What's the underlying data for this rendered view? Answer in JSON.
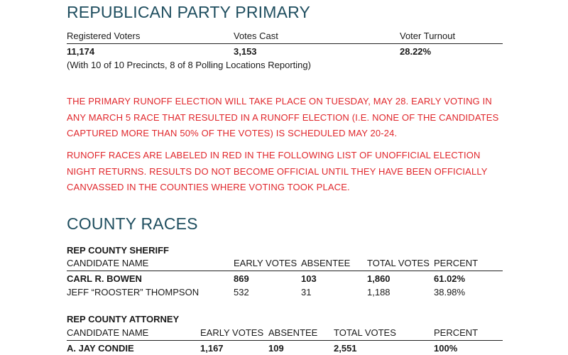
{
  "primary": {
    "title": "REPUBLICAN PARTY PRIMARY",
    "headers": [
      "Registered Voters",
      "Votes Cast",
      "Voter Turnout"
    ],
    "values": [
      "11,174",
      "3,153",
      "28.22%"
    ],
    "note": "(With 10 of 10 Precincts, 8 of 8 Polling Locations Reporting)"
  },
  "notices": [
    "THE PRIMARY RUNOFF ELECTION WILL TAKE PLACE ON TUESDAY, MAY 28. EARLY VOTING IN ANY MARCH 5 RACE THAT RESULTED IN A RUNOFF ELECTION (I.E. NONE OF THE CANDIDATES CAPTURED MORE THAN 50% OF THE VOTES) IS SCHEDULED MAY 20-24.",
    "RUNOFF RACES ARE LABELED IN RED IN THE FOLLOWING LIST OF UNOFFICIAL ELECTION NIGHT RETURNS. RESULTS DO NOT BECOME OFFICIAL UNTIL THEY HAVE BEEN OFFICIALLY CANVASSED IN THE COUNTIES WHERE VOTING TOOK PLACE."
  ],
  "county": {
    "title": "COUNTY RACES",
    "sheriff": {
      "race": "REP COUNTY SHERIFF",
      "headers": [
        "CANDIDATE NAME",
        "EARLY VOTES",
        "ABSENTEE",
        "TOTAL VOTES",
        "PERCENT"
      ],
      "rows": [
        [
          "CARL R. BOWEN",
          "869",
          "103",
          "1,860",
          "61.02%"
        ],
        [
          "JEFF “ROOSTER” THOMPSON",
          "532",
          "31",
          "1,188",
          "38.98%"
        ]
      ]
    },
    "attorney": {
      "race": "REP COUNTY ATTORNEY",
      "headers": [
        "CANDIDATE NAME",
        "EARLY VOTES",
        "ABSENTEE",
        "TOTAL VOTES",
        "PERCENT"
      ],
      "rows": [
        [
          "A. JAY CONDIE",
          "1,167",
          "109",
          "2,551",
          "100%"
        ]
      ]
    }
  },
  "colors": {
    "heading": "#1f4e5f",
    "runoff_text": "#e0262b",
    "rule": "#222222"
  }
}
